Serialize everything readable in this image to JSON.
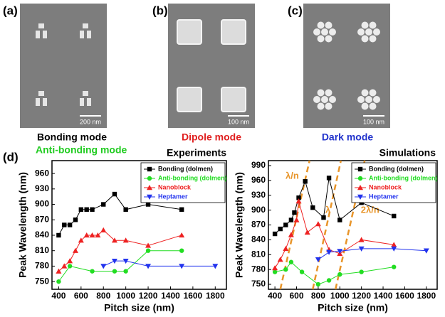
{
  "panels": [
    {
      "label": "(a)",
      "scale_bar": "200 nm"
    },
    {
      "label": "(b)",
      "scale_bar": "100 nm"
    },
    {
      "label": "(c)",
      "scale_bar": "100 nm"
    }
  ],
  "mode_labels": {
    "bonding": "Bonding mode",
    "anti_bonding": "Anti-bonding mode",
    "dipole": "Dipole mode",
    "dark": "Dark mode"
  },
  "panel_d_label": "(d)",
  "chart_data": [
    {
      "type": "line",
      "title": "Experiments",
      "x_label": "Pitch size (nm)",
      "y_label": "Peak Wavelength (nm)",
      "xlim": [
        340,
        1900
      ],
      "ylim": [
        735,
        985
      ],
      "xticks": [
        400,
        600,
        800,
        1000,
        1200,
        1400,
        1600,
        1800
      ],
      "yticks": [
        750,
        780,
        810,
        840,
        870,
        900,
        930,
        960
      ],
      "legend": "upper right",
      "series": [
        {
          "name": "Bonding (dolmen)",
          "color": "#000000",
          "marker": "square",
          "x": [
            400,
            450,
            500,
            550,
            600,
            650,
            700,
            800,
            900,
            1000,
            1200,
            1500
          ],
          "values": [
            840,
            860,
            860,
            870,
            890,
            890,
            890,
            900,
            920,
            890,
            900,
            890
          ]
        },
        {
          "name": "Anti-bonding (dolmen)",
          "color": "#22dd22",
          "marker": "circle",
          "x": [
            400,
            500,
            700,
            900,
            1000,
            1200,
            1500
          ],
          "values": [
            750,
            780,
            770,
            770,
            770,
            810,
            810
          ]
        },
        {
          "name": "Nanoblock",
          "color": "#ee2222",
          "marker": "triangle",
          "x": [
            400,
            450,
            500,
            550,
            600,
            650,
            700,
            750,
            800,
            900,
            1000,
            1200,
            1500
          ],
          "values": [
            770,
            780,
            790,
            810,
            830,
            840,
            840,
            840,
            850,
            830,
            830,
            820,
            840
          ]
        },
        {
          "name": "Heptamer",
          "color": "#2233ee",
          "marker": "down-triangle",
          "x": [
            800,
            900,
            1000,
            1200,
            1500,
            1800
          ],
          "values": [
            780,
            790,
            790,
            780,
            780,
            780
          ]
        }
      ]
    },
    {
      "type": "line",
      "title": "Simulations",
      "x_label": "Pitch size (nm)",
      "y_label": "Peak Wavelength (nm)",
      "xlim": [
        340,
        1900
      ],
      "ylim": [
        740,
        1000
      ],
      "xticks": [
        400,
        600,
        800,
        1000,
        1200,
        1400,
        1600,
        1800
      ],
      "yticks": [
        750,
        780,
        810,
        840,
        870,
        900,
        930,
        960,
        990
      ],
      "legend": "upper right",
      "annotations": [
        "λ/n",
        "λ",
        "2λ/n"
      ],
      "series": [
        {
          "name": "Bonding (dolmen)",
          "color": "#000000",
          "marker": "square",
          "x": [
            400,
            450,
            500,
            550,
            580,
            620,
            680,
            750,
            850,
            900,
            1000,
            1200,
            1500
          ],
          "values": [
            852,
            862,
            870,
            880,
            895,
            925,
            958,
            905,
            885,
            965,
            880,
            915,
            888
          ]
        },
        {
          "name": "Anti-bonding (dolmen)",
          "color": "#22dd22",
          "marker": "circle",
          "x": [
            400,
            500,
            550,
            650,
            800,
            900,
            1000,
            1200,
            1500
          ],
          "values": [
            775,
            780,
            795,
            775,
            750,
            758,
            770,
            775,
            785
          ]
        },
        {
          "name": "Nanoblock",
          "color": "#ee2222",
          "marker": "triangle",
          "x": [
            400,
            450,
            500,
            550,
            600,
            620,
            700,
            800,
            900,
            1000,
            1200,
            1500
          ],
          "values": [
            783,
            800,
            822,
            850,
            880,
            918,
            855,
            872,
            820,
            812,
            840,
            830
          ]
        },
        {
          "name": "Heptamer",
          "color": "#2233ee",
          "marker": "down-triangle",
          "x": [
            800,
            900,
            1000,
            1200,
            1500,
            1800
          ],
          "values": [
            800,
            815,
            817,
            822,
            822,
            818
          ]
        }
      ]
    }
  ]
}
